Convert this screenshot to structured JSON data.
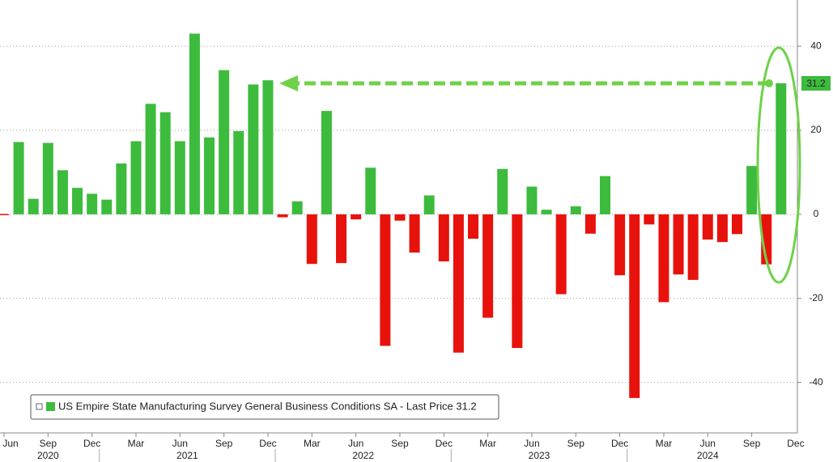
{
  "chart_data": {
    "type": "bar",
    "categories": [
      "Jun",
      null,
      null,
      "Sep",
      null,
      null,
      "Dec",
      null,
      null,
      "Mar",
      null,
      null,
      "Jun",
      null,
      null,
      "Sep",
      null,
      null,
      "Dec",
      null,
      null,
      "Mar",
      null,
      null,
      "Jun",
      null,
      null,
      "Sep",
      null,
      null,
      "Dec",
      null,
      null,
      "Mar",
      null,
      null,
      "Jun",
      null,
      null,
      "Sep",
      null,
      null,
      "Dec",
      null,
      null,
      "Mar",
      null,
      null,
      "Jun",
      null,
      null,
      "Sep",
      null,
      null
    ],
    "years": [
      "2020",
      "2021",
      "2022",
      "2023",
      "2024"
    ],
    "extra_tick": "Dec",
    "series": [
      {
        "name": "US Empire State Manufacturing Survey General Business Conditions SA - Last Price 31.2",
        "color": "#3dbb3d",
        "negative_color": "#e8120c",
        "values": [
          -0.2,
          17.2,
          3.7,
          17.0,
          10.5,
          6.3,
          4.9,
          3.5,
          12.1,
          17.4,
          26.3,
          24.3,
          17.4,
          43.0,
          18.3,
          34.3,
          19.8,
          30.9,
          31.9,
          -0.7,
          3.1,
          -11.8,
          24.6,
          -11.6,
          -1.2,
          11.1,
          -31.3,
          -1.5,
          -9.1,
          4.5,
          -11.2,
          -32.9,
          -5.8,
          -24.6,
          10.8,
          -31.8,
          6.6,
          1.1,
          -19.0,
          1.9,
          -4.6,
          9.1,
          -14.5,
          -43.7,
          -2.4,
          -20.9,
          -14.3,
          -15.6,
          -6.0,
          -6.6,
          -4.7,
          11.5,
          -11.9,
          31.2
        ]
      }
    ],
    "last_value": 31.2,
    "ylim": [
      -52,
      51
    ],
    "yticks": [
      -40,
      -20,
      0,
      20,
      40
    ],
    "grid": true
  }
}
